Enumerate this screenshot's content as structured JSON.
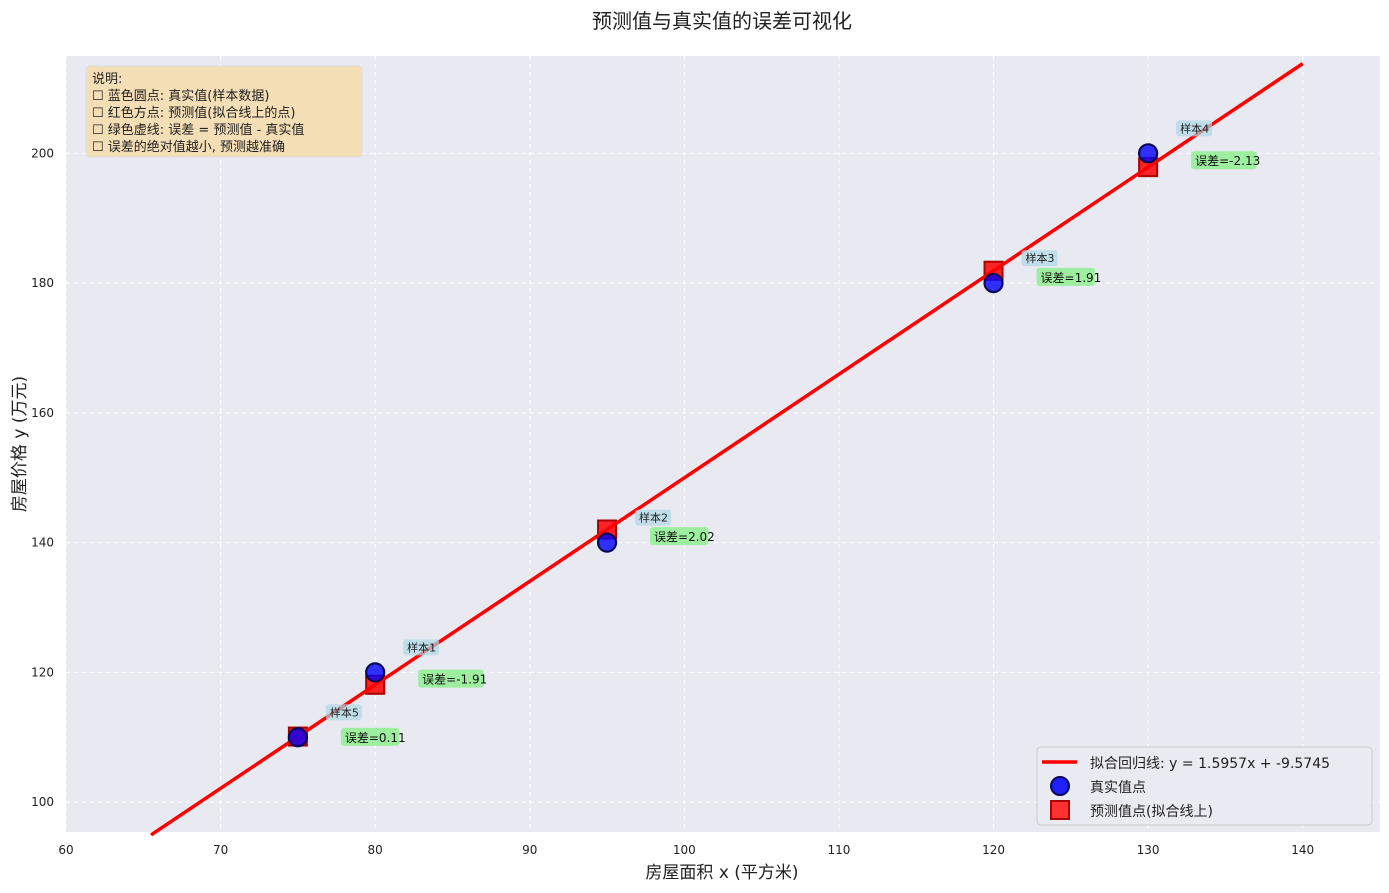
{
  "chart_data": {
    "type": "scatter",
    "title": "预测值与真实值的误差可视化",
    "xlabel": "房屋面积 x (平方米)",
    "ylabel": "房屋价格 y (万元)",
    "xlim": [
      60,
      145
    ],
    "ylim": [
      95.4,
      215
    ],
    "xticks": [
      60,
      70,
      80,
      90,
      100,
      110,
      120,
      130,
      140
    ],
    "yticks": [
      100,
      120,
      140,
      160,
      180,
      200
    ],
    "grid": true,
    "fit": {
      "slope": 1.5957,
      "intercept": -9.5745,
      "x_range": [
        65.5,
        140
      ],
      "color": "#ff0000"
    },
    "samples": [
      {
        "label": "样本1",
        "x": 80,
        "true": 120,
        "pred": 118.09,
        "error_label": "误差=-1.91"
      },
      {
        "label": "样本2",
        "x": 95,
        "true": 140,
        "pred": 142.02,
        "error_label": "误差=2.02"
      },
      {
        "label": "样本3",
        "x": 120,
        "true": 180,
        "pred": 181.91,
        "error_label": "误差=1.91"
      },
      {
        "label": "样本4",
        "x": 130,
        "true": 200,
        "pred": 197.87,
        "error_label": "误差=-2.13"
      },
      {
        "label": "样本5",
        "x": 75,
        "true": 110,
        "pred": 110.11,
        "error_label": "误差=0.11"
      }
    ],
    "legend": {
      "position": "lower-right",
      "entries": [
        "拟合回归线: y = 1.5957x + -9.5745",
        "真实值点",
        "预测值点(拟合线上)"
      ]
    },
    "note": {
      "position": "top-left",
      "lines": [
        "说明:",
        "☐ 蓝色圆点: 真实值(样本数据)",
        "☐ 红色方点: 预测值(拟合线上的点)",
        "☐ 绿色虚线: 误差 = 预测值 - 真实值",
        "☐ 误差的绝对值越小, 预测越准确"
      ]
    },
    "colors": {
      "true": "#0000ff",
      "pred": "#ff0000",
      "plot_bg": "#e9e9f2",
      "note_bg": "#f5deb3",
      "sample_label_bg": "#add8e6",
      "error_label_bg": "#90ee90"
    }
  }
}
